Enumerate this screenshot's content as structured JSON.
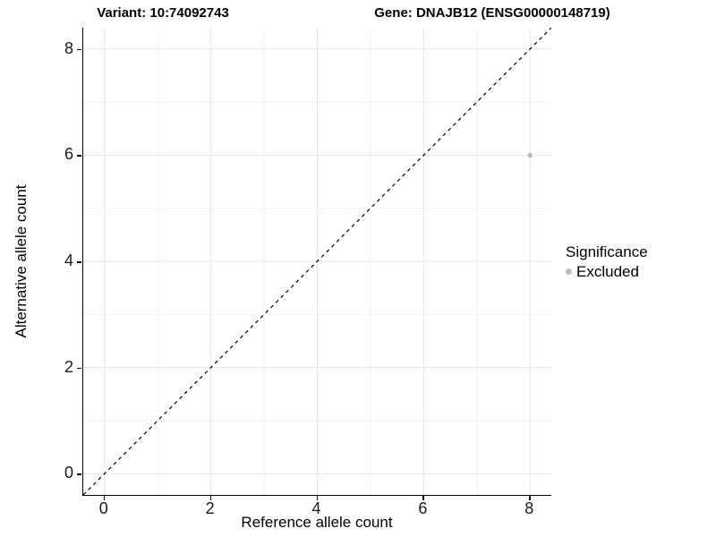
{
  "titles": {
    "variant": "Variant: 10:74092743",
    "gene": "Gene: DNAJB12 (ENSG00000148719)"
  },
  "chart_data": {
    "type": "scatter",
    "title": "Variant: 10:74092743 | Gene: DNAJB12 (ENSG00000148719)",
    "xlabel": "Reference allele count",
    "ylabel": "Alternative allele count",
    "xlim": [
      -0.4,
      8.4
    ],
    "ylim": [
      -0.4,
      8.4
    ],
    "x_ticks": [
      0,
      2,
      4,
      6,
      8
    ],
    "y_ticks": [
      0,
      2,
      4,
      6,
      8
    ],
    "x_minor_ticks": [
      1,
      3,
      5,
      7
    ],
    "y_minor_ticks": [
      1,
      3,
      5,
      7
    ],
    "grid": true,
    "series": [
      {
        "name": "Excluded",
        "points": [
          {
            "x": 8,
            "y": 6
          }
        ],
        "color": "#bebebe"
      }
    ],
    "identity_line": {
      "type": "abline",
      "slope": 1,
      "intercept": 0,
      "style": "dashed",
      "color": "#000000"
    },
    "legend": {
      "title": "Significance",
      "position": "right",
      "items": [
        {
          "label": "Excluded",
          "color": "#bebebe"
        }
      ]
    }
  },
  "colors": {
    "background": "#ffffff",
    "axis_line": "#000000",
    "grid_major": "#e6e6e6",
    "grid_minor": "#f3f3f3",
    "point": "#bebebe",
    "text": "#000000"
  }
}
